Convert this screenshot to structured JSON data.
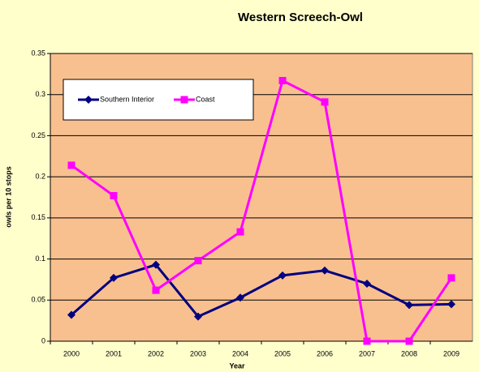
{
  "chart_data": {
    "type": "line",
    "title": "Western Screech-Owl",
    "x_label": "Year",
    "y_label": "owls per 10 stops",
    "categories": [
      "2000",
      "2001",
      "2002",
      "2003",
      "2004",
      "2005",
      "2006",
      "2007",
      "2008",
      "2009"
    ],
    "series": [
      {
        "name": "Southern Interior",
        "color": "#000080",
        "marker": "diamond",
        "values": [
          0.032,
          0.077,
          0.093,
          0.03,
          0.053,
          0.08,
          0.086,
          0.07,
          0.044,
          0.045
        ]
      },
      {
        "name": "Coast",
        "color": "#ff00ff",
        "marker": "square",
        "values": [
          0.214,
          0.177,
          0.062,
          0.098,
          0.133,
          0.317,
          0.291,
          0,
          0,
          0.077
        ]
      }
    ],
    "ylim": [
      0,
      0.35
    ],
    "yticks": [
      0,
      0.05,
      0.1,
      0.15,
      0.2,
      0.25,
      0.3,
      0.35
    ],
    "grid": true,
    "plot_background": "#f9c08f",
    "legend": "top-left"
  }
}
